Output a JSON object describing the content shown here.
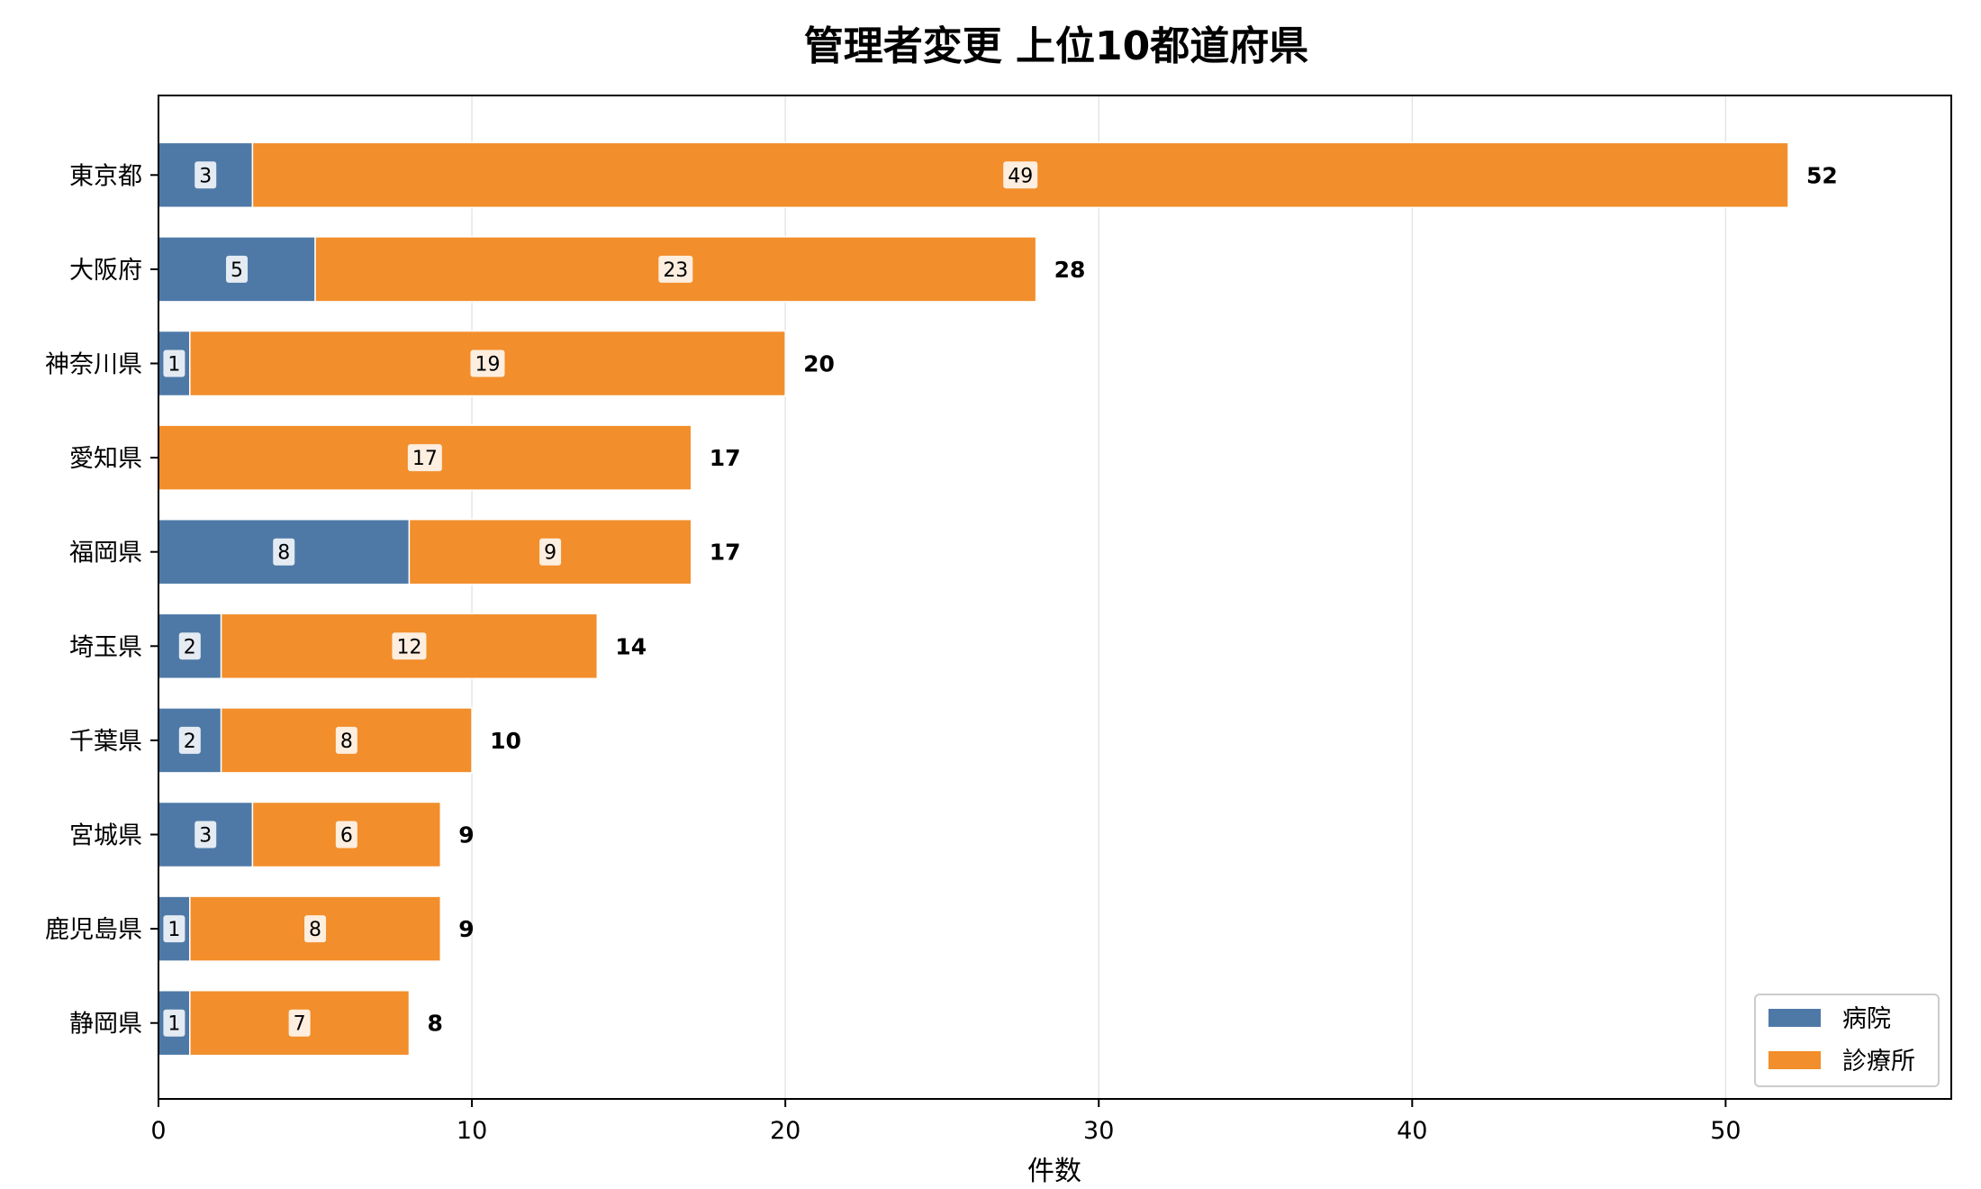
{
  "chart_data": {
    "type": "bar",
    "orientation": "horizontal",
    "stacked": true,
    "title": "管理者変更 上位10都道府県",
    "xlabel": "件数",
    "ylabel": "",
    "xlim": [
      0,
      57.2
    ],
    "xticks": [
      0,
      10,
      20,
      30,
      40,
      50
    ],
    "grid": "x",
    "legend_position": "lower-right",
    "categories": [
      "東京都",
      "大阪府",
      "神奈川県",
      "愛知県",
      "福岡県",
      "埼玉県",
      "千葉県",
      "宮城県",
      "鹿児島県",
      "静岡県"
    ],
    "series": [
      {
        "name": "病院",
        "color": "#4e79a7",
        "values": [
          3,
          5,
          1,
          0,
          8,
          2,
          2,
          3,
          1,
          1
        ]
      },
      {
        "name": "診療所",
        "color": "#f28e2b",
        "values": [
          49,
          23,
          19,
          17,
          9,
          12,
          8,
          6,
          8,
          7
        ]
      }
    ],
    "totals": [
      52,
      28,
      20,
      17,
      17,
      14,
      10,
      9,
      9,
      8
    ]
  }
}
